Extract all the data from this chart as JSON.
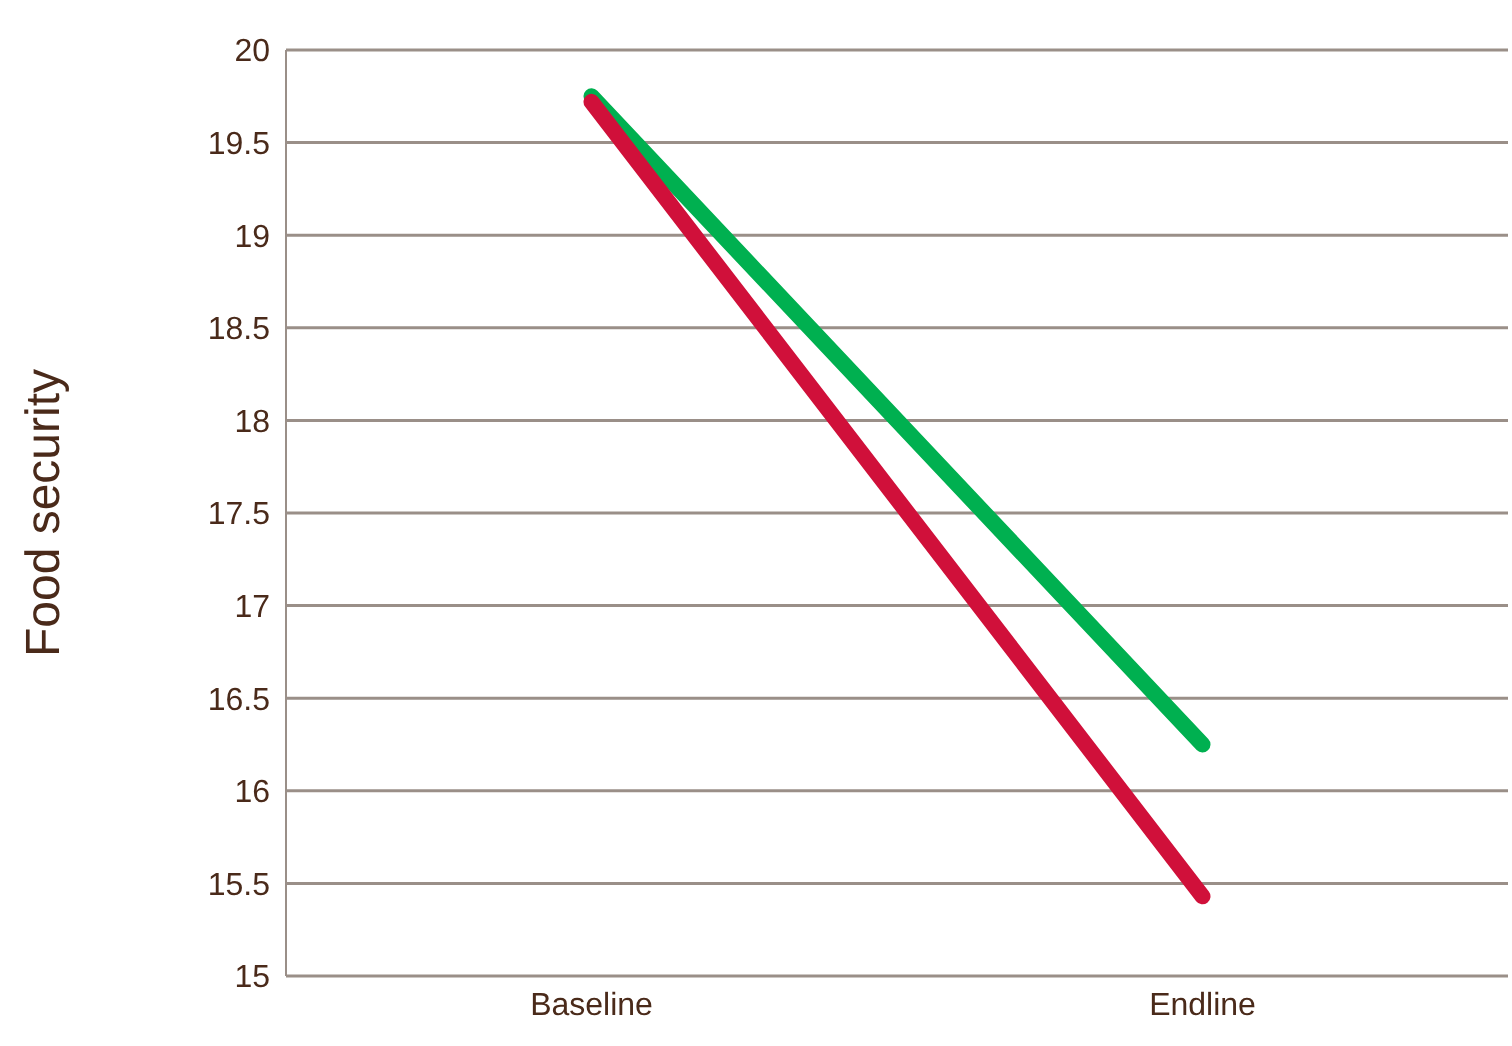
{
  "chart_data": {
    "type": "line",
    "ylabel": "Food security",
    "categories": [
      "Baseline",
      "Endline"
    ],
    "series": [
      {
        "color": "#00b050",
        "values": [
          19.75,
          16.25
        ]
      },
      {
        "color": "#d0103a",
        "values": [
          19.72,
          15.43
        ]
      }
    ],
    "ylim": [
      15,
      20
    ],
    "yticks": [
      15,
      15.5,
      16,
      16.5,
      17,
      17.5,
      18,
      18.5,
      19,
      19.5,
      20
    ],
    "grid": "y",
    "marker": "none",
    "legend": false
  }
}
